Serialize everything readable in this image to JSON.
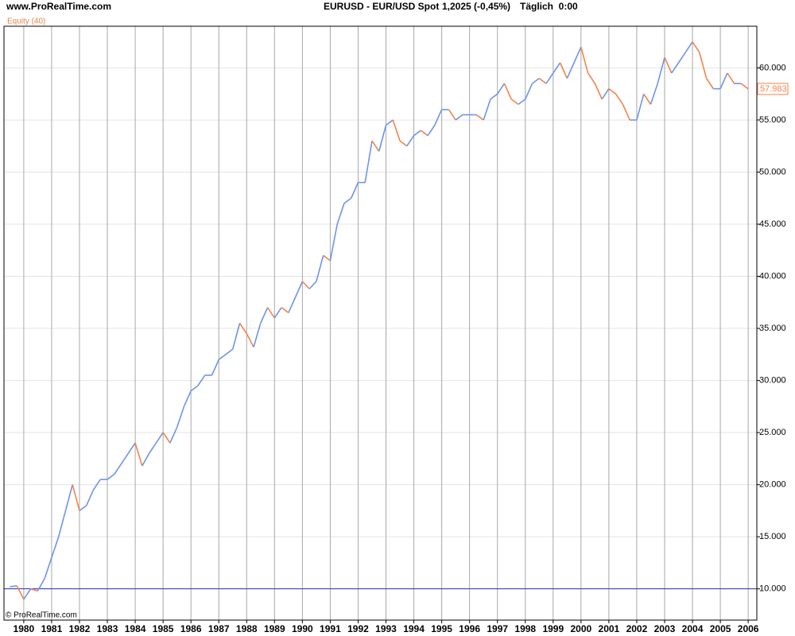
{
  "chart_data": {
    "type": "line",
    "site": "www.ProRealTime.com",
    "title": "EURUSD - EUR/USD Spot",
    "quote": "1,2025 (-0,45%)",
    "timeframe": "Täglich  0:00",
    "copyright": "© ProRealTime.com",
    "x": [
      1979.5,
      1979.75,
      1980,
      1980.25,
      1980.5,
      1980.75,
      1981,
      1981.25,
      1981.5,
      1981.75,
      1982,
      1982.25,
      1982.5,
      1982.75,
      1983,
      1983.25,
      1983.5,
      1983.75,
      1984,
      1984.25,
      1984.5,
      1984.75,
      1985,
      1985.25,
      1985.5,
      1985.75,
      1986,
      1986.25,
      1986.5,
      1986.75,
      1987,
      1987.25,
      1987.5,
      1987.75,
      1988,
      1988.25,
      1988.5,
      1988.75,
      1989,
      1989.25,
      1989.5,
      1989.75,
      1990,
      1990.25,
      1990.5,
      1990.75,
      1991,
      1991.25,
      1991.5,
      1991.75,
      1992,
      1992.25,
      1992.5,
      1992.75,
      1993,
      1993.25,
      1993.5,
      1993.75,
      1994,
      1994.25,
      1994.5,
      1994.75,
      1995,
      1995.25,
      1995.5,
      1995.75,
      1996,
      1996.25,
      1996.5,
      1996.75,
      1997,
      1997.25,
      1997.5,
      1997.75,
      1998,
      1998.25,
      1998.5,
      1998.75,
      1999,
      1999.25,
      1999.5,
      1999.75,
      2000,
      2000.25,
      2000.5,
      2000.75,
      2001,
      2001.25,
      2001.5,
      2001.75,
      2002,
      2002.25,
      2002.5,
      2002.75,
      2003,
      2003.25,
      2003.5,
      2003.75,
      2004,
      2004.25,
      2004.5,
      2004.75,
      2005,
      2005.25,
      2005.5,
      2005.75,
      2006
    ],
    "series": [
      {
        "name": "Equity (40)",
        "color": "#6f94e8",
        "down_color": "#f5834a",
        "values": [
          10200,
          10300,
          9000,
          10000,
          9800,
          11000,
          13000,
          15000,
          17500,
          20000,
          17500,
          18000,
          19500,
          20500,
          20500,
          21000,
          22000,
          23000,
          24000,
          21800,
          23000,
          24000,
          25000,
          24000,
          25500,
          27500,
          29000,
          29500,
          30500,
          30500,
          32000,
          32500,
          33000,
          35500,
          34500,
          33200,
          35500,
          37000,
          36000,
          37000,
          36500,
          38000,
          39500,
          38800,
          39500,
          42000,
          41500,
          45000,
          47000,
          47500,
          49000,
          49000,
          53000,
          52000,
          54500,
          55000,
          53000,
          52500,
          53500,
          54000,
          53500,
          54500,
          56000,
          56000,
          55000,
          55500,
          55500,
          55500,
          55000,
          57000,
          57500,
          58500,
          57000,
          56500,
          57000,
          58500,
          59000,
          58500,
          59500,
          60500,
          59000,
          60500,
          62000,
          59500,
          58500,
          57000,
          58000,
          57500,
          56500,
          55000,
          55000,
          57500,
          56500,
          58500,
          61000,
          59500,
          60500,
          61500,
          62500,
          61500,
          59000,
          58000,
          58000,
          59500,
          58500,
          58500,
          57983
        ],
        "value_labels": [
          null,
          null,
          null,
          null,
          null,
          null,
          null,
          null,
          null,
          null,
          null,
          null,
          null,
          null,
          null,
          null,
          null,
          null,
          null,
          null,
          null,
          null,
          null,
          null,
          null,
          null,
          null,
          null,
          null,
          null,
          null,
          null,
          null,
          null,
          null,
          null,
          null,
          null,
          null,
          null,
          null,
          null,
          null,
          null,
          null,
          null,
          null,
          null,
          null,
          null,
          null,
          null,
          null,
          null,
          null,
          null,
          null,
          null,
          null,
          null,
          null,
          null,
          null,
          null,
          null,
          null,
          null,
          null,
          null,
          null,
          null,
          null,
          null,
          null,
          null,
          null,
          null,
          null,
          null,
          null,
          null,
          null,
          null,
          null,
          null,
          null,
          null,
          null,
          null,
          null,
          null,
          null,
          null,
          null,
          null,
          null,
          null,
          null,
          null,
          null,
          null,
          null,
          null,
          null,
          null,
          null,
          "57.983"
        ]
      }
    ],
    "xlim": [
      1979.29,
      2006.31
    ],
    "xticks": [
      1980,
      1981,
      1982,
      1983,
      1984,
      1985,
      1986,
      1987,
      1988,
      1989,
      1990,
      1991,
      1992,
      1993,
      1994,
      1995,
      1996,
      1997,
      1998,
      1999,
      2000,
      2001,
      2002,
      2003,
      2004,
      2005,
      2006
    ],
    "ylim": [
      7000,
      64000
    ],
    "yticks": [
      {
        "value": 10000,
        "label": "10.000"
      },
      {
        "value": 15000,
        "label": "15.000"
      },
      {
        "value": 20000,
        "label": "20.000"
      },
      {
        "value": 25000,
        "label": "25.000"
      },
      {
        "value": 30000,
        "label": "30.000"
      },
      {
        "value": 35000,
        "label": "35.000"
      },
      {
        "value": 40000,
        "label": "40.000"
      },
      {
        "value": 45000,
        "label": "45.000"
      },
      {
        "value": 50000,
        "label": "50.000"
      },
      {
        "value": 55000,
        "label": "55.000"
      },
      {
        "value": 60000,
        "label": "60.000"
      }
    ],
    "baseline": 10000,
    "baseline_color": "#2b2bb0",
    "grid": true
  }
}
